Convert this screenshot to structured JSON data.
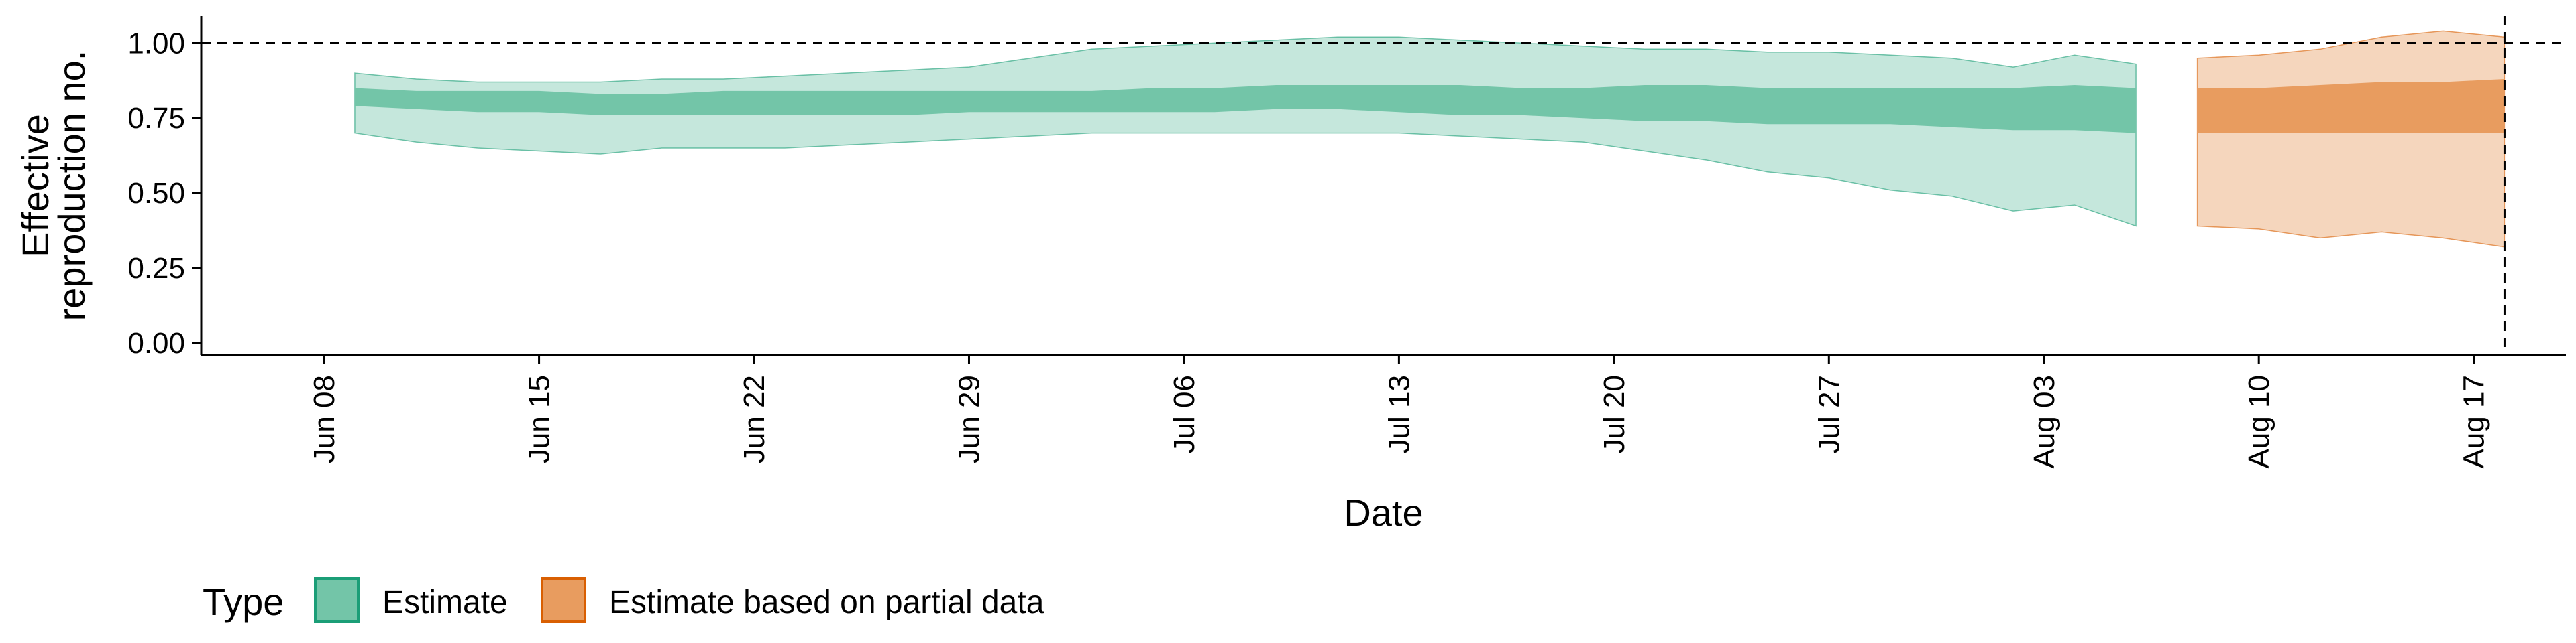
{
  "chart_data": {
    "type": "area",
    "xlabel": "Date",
    "ylabel_lines": [
      "Effective",
      "reproduction no."
    ],
    "y_ticks": [
      0.0,
      0.25,
      0.5,
      0.75,
      1.0
    ],
    "y_tick_labels": [
      "0.00",
      "0.25",
      "0.50",
      "0.75",
      "1.00"
    ],
    "ylim": [
      -0.04,
      1.09
    ],
    "xlim": [
      "2020-06-04",
      "2020-08-20"
    ],
    "x_tick_labels": [
      "Jun 08",
      "Jun 15",
      "Jun 22",
      "Jun 29",
      "Jul 06",
      "Jul 13",
      "Jul 20",
      "Jul 27",
      "Aug 03",
      "Aug 10",
      "Aug 17"
    ],
    "x_tick_dates": [
      "2020-06-08",
      "2020-06-15",
      "2020-06-22",
      "2020-06-29",
      "2020-07-06",
      "2020-07-13",
      "2020-07-20",
      "2020-07-27",
      "2020-08-03",
      "2020-08-10",
      "2020-08-17"
    ],
    "hline_y": 1.0,
    "vline_date": "2020-08-18",
    "legend": {
      "title": "Type",
      "position": "bottom-left",
      "items": [
        {
          "label": "Estimate",
          "fill": "#73c5a8",
          "stroke": "#1b9e77"
        },
        {
          "label": "Estimate based on partial data",
          "fill": "#e89c5f",
          "stroke": "#d95f02"
        }
      ]
    },
    "colors": {
      "estimate_outer": "#c5e7dc",
      "estimate_inner": "#73c5a8",
      "estimate_edge": "#1b9e77",
      "partial_outer": "#f5d6bd",
      "partial_inner": "#e89c5f",
      "partial_edge": "#d95f02"
    },
    "series": [
      {
        "name": "Estimate",
        "dates": [
          "2020-06-09",
          "2020-06-11",
          "2020-06-13",
          "2020-06-15",
          "2020-06-17",
          "2020-06-19",
          "2020-06-21",
          "2020-06-23",
          "2020-06-25",
          "2020-06-27",
          "2020-06-29",
          "2020-07-01",
          "2020-07-03",
          "2020-07-05",
          "2020-07-07",
          "2020-07-09",
          "2020-07-11",
          "2020-07-13",
          "2020-07-15",
          "2020-07-17",
          "2020-07-19",
          "2020-07-21",
          "2020-07-23",
          "2020-07-25",
          "2020-07-27",
          "2020-07-29",
          "2020-07-31",
          "2020-08-02",
          "2020-08-04",
          "2020-08-06"
        ],
        "lower_90": [
          0.7,
          0.67,
          0.65,
          0.64,
          0.63,
          0.65,
          0.65,
          0.65,
          0.66,
          0.67,
          0.68,
          0.69,
          0.7,
          0.7,
          0.7,
          0.7,
          0.7,
          0.7,
          0.69,
          0.68,
          0.67,
          0.64,
          0.61,
          0.57,
          0.55,
          0.51,
          0.49,
          0.44,
          0.46,
          0.39
        ],
        "upper_90": [
          0.9,
          0.88,
          0.87,
          0.87,
          0.87,
          0.88,
          0.88,
          0.89,
          0.9,
          0.91,
          0.92,
          0.95,
          0.98,
          0.99,
          1.0,
          1.01,
          1.02,
          1.02,
          1.01,
          1.0,
          0.99,
          0.98,
          0.98,
          0.97,
          0.97,
          0.96,
          0.95,
          0.92,
          0.96,
          0.93
        ],
        "lower_50": [
          0.79,
          0.78,
          0.77,
          0.77,
          0.76,
          0.76,
          0.76,
          0.76,
          0.76,
          0.76,
          0.77,
          0.77,
          0.77,
          0.77,
          0.77,
          0.78,
          0.78,
          0.77,
          0.76,
          0.76,
          0.75,
          0.74,
          0.74,
          0.73,
          0.73,
          0.73,
          0.72,
          0.71,
          0.71,
          0.7
        ],
        "upper_50": [
          0.85,
          0.84,
          0.84,
          0.84,
          0.83,
          0.83,
          0.84,
          0.84,
          0.84,
          0.84,
          0.84,
          0.84,
          0.84,
          0.85,
          0.85,
          0.86,
          0.86,
          0.86,
          0.86,
          0.85,
          0.85,
          0.86,
          0.86,
          0.85,
          0.85,
          0.85,
          0.85,
          0.85,
          0.86,
          0.85
        ]
      },
      {
        "name": "Estimate based on partial data",
        "dates": [
          "2020-08-08",
          "2020-08-10",
          "2020-08-12",
          "2020-08-14",
          "2020-08-16",
          "2020-08-18"
        ],
        "lower_90": [
          0.39,
          0.38,
          0.35,
          0.37,
          0.35,
          0.32
        ],
        "upper_90": [
          0.95,
          0.96,
          0.98,
          1.02,
          1.04,
          1.02
        ],
        "lower_50": [
          0.7,
          0.7,
          0.7,
          0.7,
          0.7,
          0.7
        ],
        "upper_50": [
          0.85,
          0.85,
          0.86,
          0.87,
          0.87,
          0.88
        ]
      }
    ]
  }
}
